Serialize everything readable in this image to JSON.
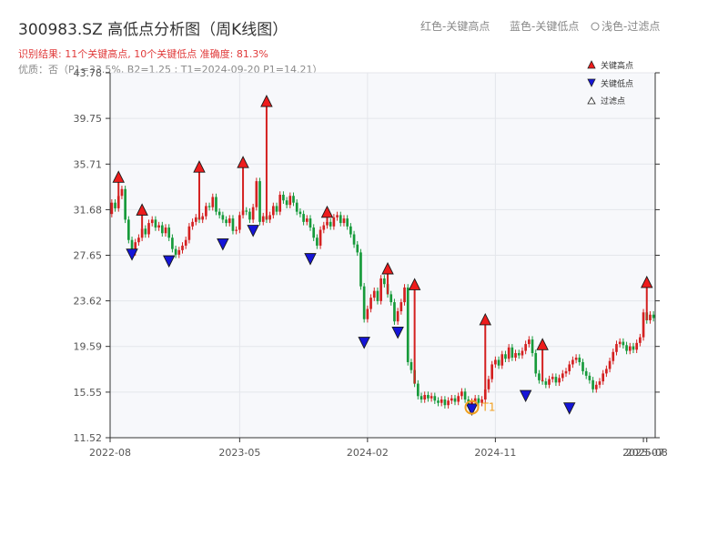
{
  "chart_data": {
    "type": "candlestick",
    "title": "300983.SZ 高低点分析图（周K线图）",
    "subtitle_result": "识别结果: 11个关键高点, 10个关键低点  准确度: 81.3%",
    "subtitle_quality": "优质：否（P1=33.5%, B2=1.25 ; T1=2024-09-20 P1=14.21）",
    "top_legend": [
      "红色-关键高点",
      "蓝色-关键低点",
      "浅色-过滤点"
    ],
    "legend": {
      "position": "top-right",
      "items": [
        {
          "label": "关键高点",
          "marker": "up-triangle",
          "color": "#ee1c1c"
        },
        {
          "label": "关键低点",
          "marker": "down-triangle",
          "color": "#1515d8"
        },
        {
          "label": "过滤点",
          "marker": "up-triangle-outline",
          "color": "#ffffff"
        }
      ]
    },
    "y_axis": {
      "min": 11.52,
      "max": 43.78,
      "ticks": [
        "11.52",
        "15.55",
        "19.59",
        "23.62",
        "27.65",
        "31.68",
        "35.71",
        "39.75",
        "43.78"
      ]
    },
    "x_axis": {
      "ticks": [
        "2022-08",
        "2023-05",
        "2024-02",
        "2024-11",
        "2025-07",
        "2025-08"
      ]
    },
    "grid": true,
    "colors": {
      "up": "#d42020",
      "down": "#169a3a",
      "high_marker": "#ee1c1c",
      "low_marker": "#1515d8",
      "t1": "#f0a020"
    },
    "weekly_close": [
      32.3,
      31.8,
      32.9,
      33.5,
      30.8,
      29.0,
      27.9,
      28.8,
      29.2,
      30.0,
      29.5,
      30.5,
      30.8,
      30.1,
      30.3,
      29.6,
      30.1,
      29.2,
      28.2,
      27.7,
      28.1,
      28.5,
      29.0,
      30.2,
      30.6,
      31.0,
      30.8,
      31.1,
      32.0,
      31.9,
      32.8,
      31.5,
      31.2,
      30.8,
      30.5,
      30.9,
      29.8,
      29.9,
      31.2,
      31.6,
      31.5,
      30.8,
      31.9,
      34.2,
      30.6,
      31.1,
      30.8,
      31.2,
      32.0,
      31.5,
      33.0,
      32.5,
      32.1,
      32.9,
      32.3,
      31.5,
      31.3,
      30.6,
      30.9,
      30.1,
      29.2,
      28.5,
      29.9,
      30.3,
      30.6,
      30.2,
      31.0,
      31.2,
      30.5,
      30.9,
      30.2,
      29.5,
      28.6,
      27.9,
      24.9,
      22.0,
      22.9,
      23.9,
      24.5,
      23.6,
      25.6,
      25.1,
      24.2,
      23.5,
      21.8,
      22.7,
      23.5,
      24.8,
      18.2,
      17.5,
      16.3,
      15.2,
      14.9,
      15.3,
      15.0,
      15.2,
      14.8,
      14.6,
      14.9,
      14.4,
      14.8,
      15.0,
      14.7,
      15.2,
      15.6,
      14.9,
      14.5,
      14.7,
      15.0,
      14.6,
      14.9,
      15.8,
      16.7,
      18.0,
      18.4,
      17.9,
      18.9,
      18.5,
      19.5,
      18.6,
      19.0,
      18.8,
      19.2,
      19.8,
      20.2,
      19.0,
      17.2,
      16.6,
      16.5,
      16.2,
      16.7,
      16.9,
      16.4,
      16.8,
      17.2,
      17.4,
      18.0,
      18.4,
      18.6,
      18.2,
      17.4,
      17.0,
      16.6,
      15.8,
      16.2,
      16.5,
      17.2,
      17.6,
      18.3,
      19.1,
      19.8,
      20.0,
      19.7,
      19.2,
      19.6,
      19.3,
      19.9,
      20.4,
      22.6,
      21.9,
      22.4,
      22.1
    ],
    "key_highs": [
      {
        "index": 2,
        "price": 34.1
      },
      {
        "index": 9,
        "price": 31.2
      },
      {
        "index": 26,
        "price": 35.0
      },
      {
        "index": 39,
        "price": 35.4
      },
      {
        "index": 46,
        "price": 40.8
      },
      {
        "index": 64,
        "price": 31.0
      },
      {
        "index": 82,
        "price": 26.0
      },
      {
        "index": 90,
        "price": 24.6
      },
      {
        "index": 111,
        "price": 21.5
      },
      {
        "index": 128,
        "price": 19.3
      },
      {
        "index": 159,
        "price": 24.8
      }
    ],
    "key_lows": [
      {
        "index": 6,
        "price": 28.2
      },
      {
        "index": 17,
        "price": 27.6
      },
      {
        "index": 33,
        "price": 29.1
      },
      {
        "index": 42,
        "price": 30.3
      },
      {
        "index": 59,
        "price": 27.8
      },
      {
        "index": 75,
        "price": 20.4
      },
      {
        "index": 85,
        "price": 21.3
      },
      {
        "index": 107,
        "price": 14.5
      },
      {
        "index": 123,
        "price": 15.7
      },
      {
        "index": 136,
        "price": 14.6
      }
    ],
    "t1": {
      "index": 107,
      "price": 14.21,
      "label": "T1"
    }
  }
}
